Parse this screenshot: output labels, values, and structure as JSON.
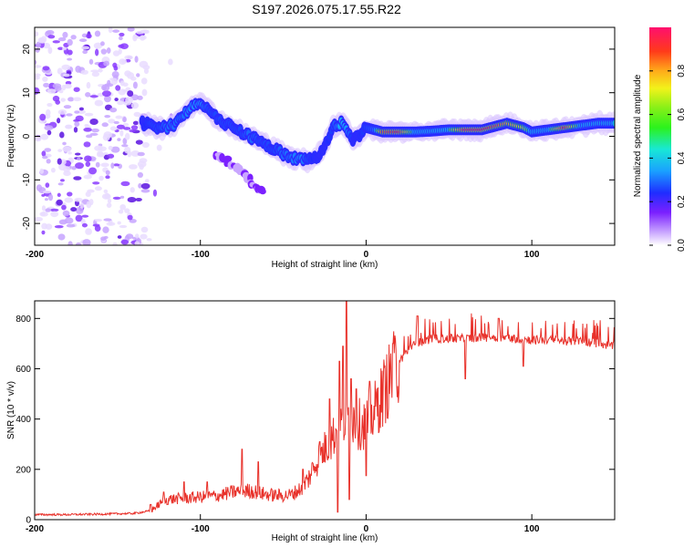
{
  "figure": {
    "title": "S197.2026.075.17.55.R22"
  },
  "chart_data": [
    {
      "type": "heatmap",
      "title": "S197.2026.075.17.55.R22",
      "xlabel": "Height of straight line (km)",
      "ylabel": "Frequency (Hz)",
      "xlim": [
        -200,
        150
      ],
      "ylim": [
        -25,
        25
      ],
      "x_ticks": [
        -200,
        -100,
        0,
        100
      ],
      "x_tick_labels": [
        "-200",
        "-100",
        "0",
        "100"
      ],
      "y_ticks": [
        -20,
        -10,
        0,
        10,
        20
      ],
      "y_tick_labels": [
        "-20",
        "-10",
        "0",
        "10",
        "20"
      ],
      "colorbar": {
        "label": "Normalized spectral amplitude",
        "range": [
          0,
          1
        ],
        "ticks": [
          0.0,
          0.2,
          0.4,
          0.6,
          0.8
        ],
        "tick_labels": [
          "0.0",
          "0.2",
          "0.4",
          "0.6",
          "0.8"
        ]
      },
      "noise_region_x": [
        -200,
        -132
      ],
      "ridge": {
        "x": [
          -135,
          -130,
          -125,
          -120,
          -115,
          -110,
          -105,
          -100,
          -95,
          -90,
          -85,
          -80,
          -75,
          -70,
          -65,
          -60,
          -55,
          -50,
          -45,
          -40,
          -35,
          -30,
          -25,
          -20,
          -15,
          -12,
          -8,
          -5,
          0,
          5,
          10,
          20,
          30,
          40,
          50,
          60,
          70,
          80,
          85,
          90,
          95,
          100,
          110,
          120,
          130,
          140,
          150
        ],
        "y": [
          3,
          2.5,
          2,
          2,
          3,
          5,
          7,
          8,
          6,
          4,
          3,
          2,
          1,
          0,
          -1,
          -2,
          -3,
          -4,
          -5,
          -5,
          -5.5,
          -5,
          -2,
          2,
          3,
          2,
          -1,
          0,
          2,
          1.5,
          1,
          1,
          1,
          1.2,
          1.5,
          1.5,
          1.5,
          2.5,
          3,
          2.5,
          2,
          1,
          1.5,
          2,
          2.5,
          3,
          3
        ],
        "amplitude": [
          0.3,
          0.35,
          0.35,
          0.4,
          0.4,
          0.4,
          0.45,
          0.45,
          0.35,
          0.35,
          0.35,
          0.35,
          0.35,
          0.4,
          0.35,
          0.35,
          0.35,
          0.4,
          0.4,
          0.45,
          0.35,
          0.3,
          0.3,
          0.35,
          0.5,
          0.45,
          0.3,
          0.3,
          0.35,
          0.4,
          0.85,
          0.9,
          0.5,
          0.5,
          0.55,
          0.9,
          0.9,
          0.85,
          0.8,
          0.75,
          0.7,
          0.5,
          0.5,
          0.9,
          0.5,
          0.5,
          0.5
        ]
      },
      "secondary_branch": {
        "x": [
          -90,
          -80,
          -70,
          -62
        ],
        "y": [
          -4,
          -7,
          -10,
          -13
        ]
      }
    },
    {
      "type": "line",
      "xlabel": "Height of straight line (km)",
      "ylabel": "SNR (10 * v/v)",
      "xlim": [
        -200,
        150
      ],
      "ylim": [
        0,
        870
      ],
      "x_ticks": [
        -200,
        -100,
        0,
        100
      ],
      "x_tick_labels": [
        "-200",
        "-100",
        "0",
        "100"
      ],
      "y_ticks": [
        0,
        200,
        400,
        600,
        800
      ],
      "y_tick_labels": [
        "0",
        "200",
        "400",
        "600",
        "800"
      ],
      "series": [
        {
          "name": "SNR",
          "color": "#e8312a",
          "envelope_x": [
            -200,
            -180,
            -160,
            -140,
            -130,
            -125,
            -120,
            -110,
            -100,
            -90,
            -80,
            -70,
            -60,
            -50,
            -45,
            -40,
            -35,
            -30,
            -25,
            -20,
            -15,
            -10,
            -5,
            0,
            5,
            10,
            15,
            20,
            25,
            30,
            40,
            50,
            60,
            70,
            80,
            90,
            100,
            110,
            120,
            130,
            140,
            150
          ],
          "envelope_y": [
            20,
            20,
            22,
            25,
            35,
            60,
            80,
            85,
            90,
            95,
            110,
            115,
            100,
            95,
            100,
            120,
            160,
            230,
            280,
            330,
            380,
            420,
            380,
            380,
            430,
            500,
            570,
            630,
            670,
            700,
            720,
            720,
            720,
            725,
            725,
            720,
            715,
            715,
            710,
            710,
            700,
            690
          ],
          "spikes": [
            {
              "x": -130,
              "y": 60
            },
            {
              "x": -122,
              "y": 110
            },
            {
              "x": -110,
              "y": 150
            },
            {
              "x": -96,
              "y": 150
            },
            {
              "x": -75,
              "y": 280
            },
            {
              "x": -65,
              "y": 230
            },
            {
              "x": -38,
              "y": 200
            },
            {
              "x": -28,
              "y": 310
            },
            {
              "x": -22,
              "y": 480
            },
            {
              "x": -16,
              "y": 630
            },
            {
              "x": -14,
              "y": 690
            },
            {
              "x": -12,
              "y": 870
            },
            {
              "x": -9,
              "y": 560
            },
            {
              "x": -6,
              "y": 520
            },
            {
              "x": 2,
              "y": 550
            },
            {
              "x": 16,
              "y": 700
            },
            {
              "x": 31,
              "y": 810
            },
            {
              "x": 80,
              "y": 800
            }
          ],
          "dips": [
            {
              "x": -17,
              "y": 30
            },
            {
              "x": -10,
              "y": 80
            },
            {
              "x": 0,
              "y": 175
            },
            {
              "x": 60,
              "y": 560
            },
            {
              "x": 95,
              "y": 610
            }
          ]
        }
      ]
    }
  ]
}
